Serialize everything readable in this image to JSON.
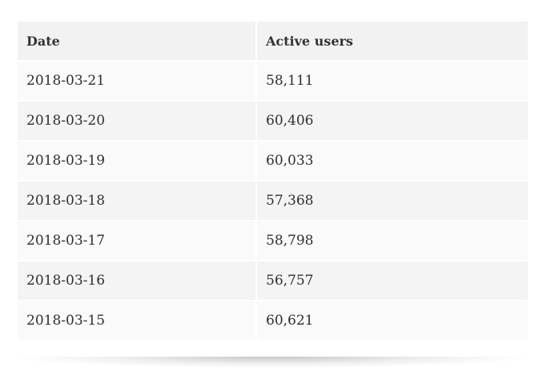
{
  "table": {
    "headers": [
      "Date",
      "Active users"
    ],
    "rows": [
      [
        "2018-03-21",
        "58,111"
      ],
      [
        "2018-03-20",
        "60,406"
      ],
      [
        "2018-03-19",
        "60,033"
      ],
      [
        "2018-03-18",
        "57,368"
      ],
      [
        "2018-03-17",
        "58,798"
      ],
      [
        "2018-03-16",
        "56,757"
      ],
      [
        "2018-03-15",
        "60,621"
      ]
    ]
  }
}
